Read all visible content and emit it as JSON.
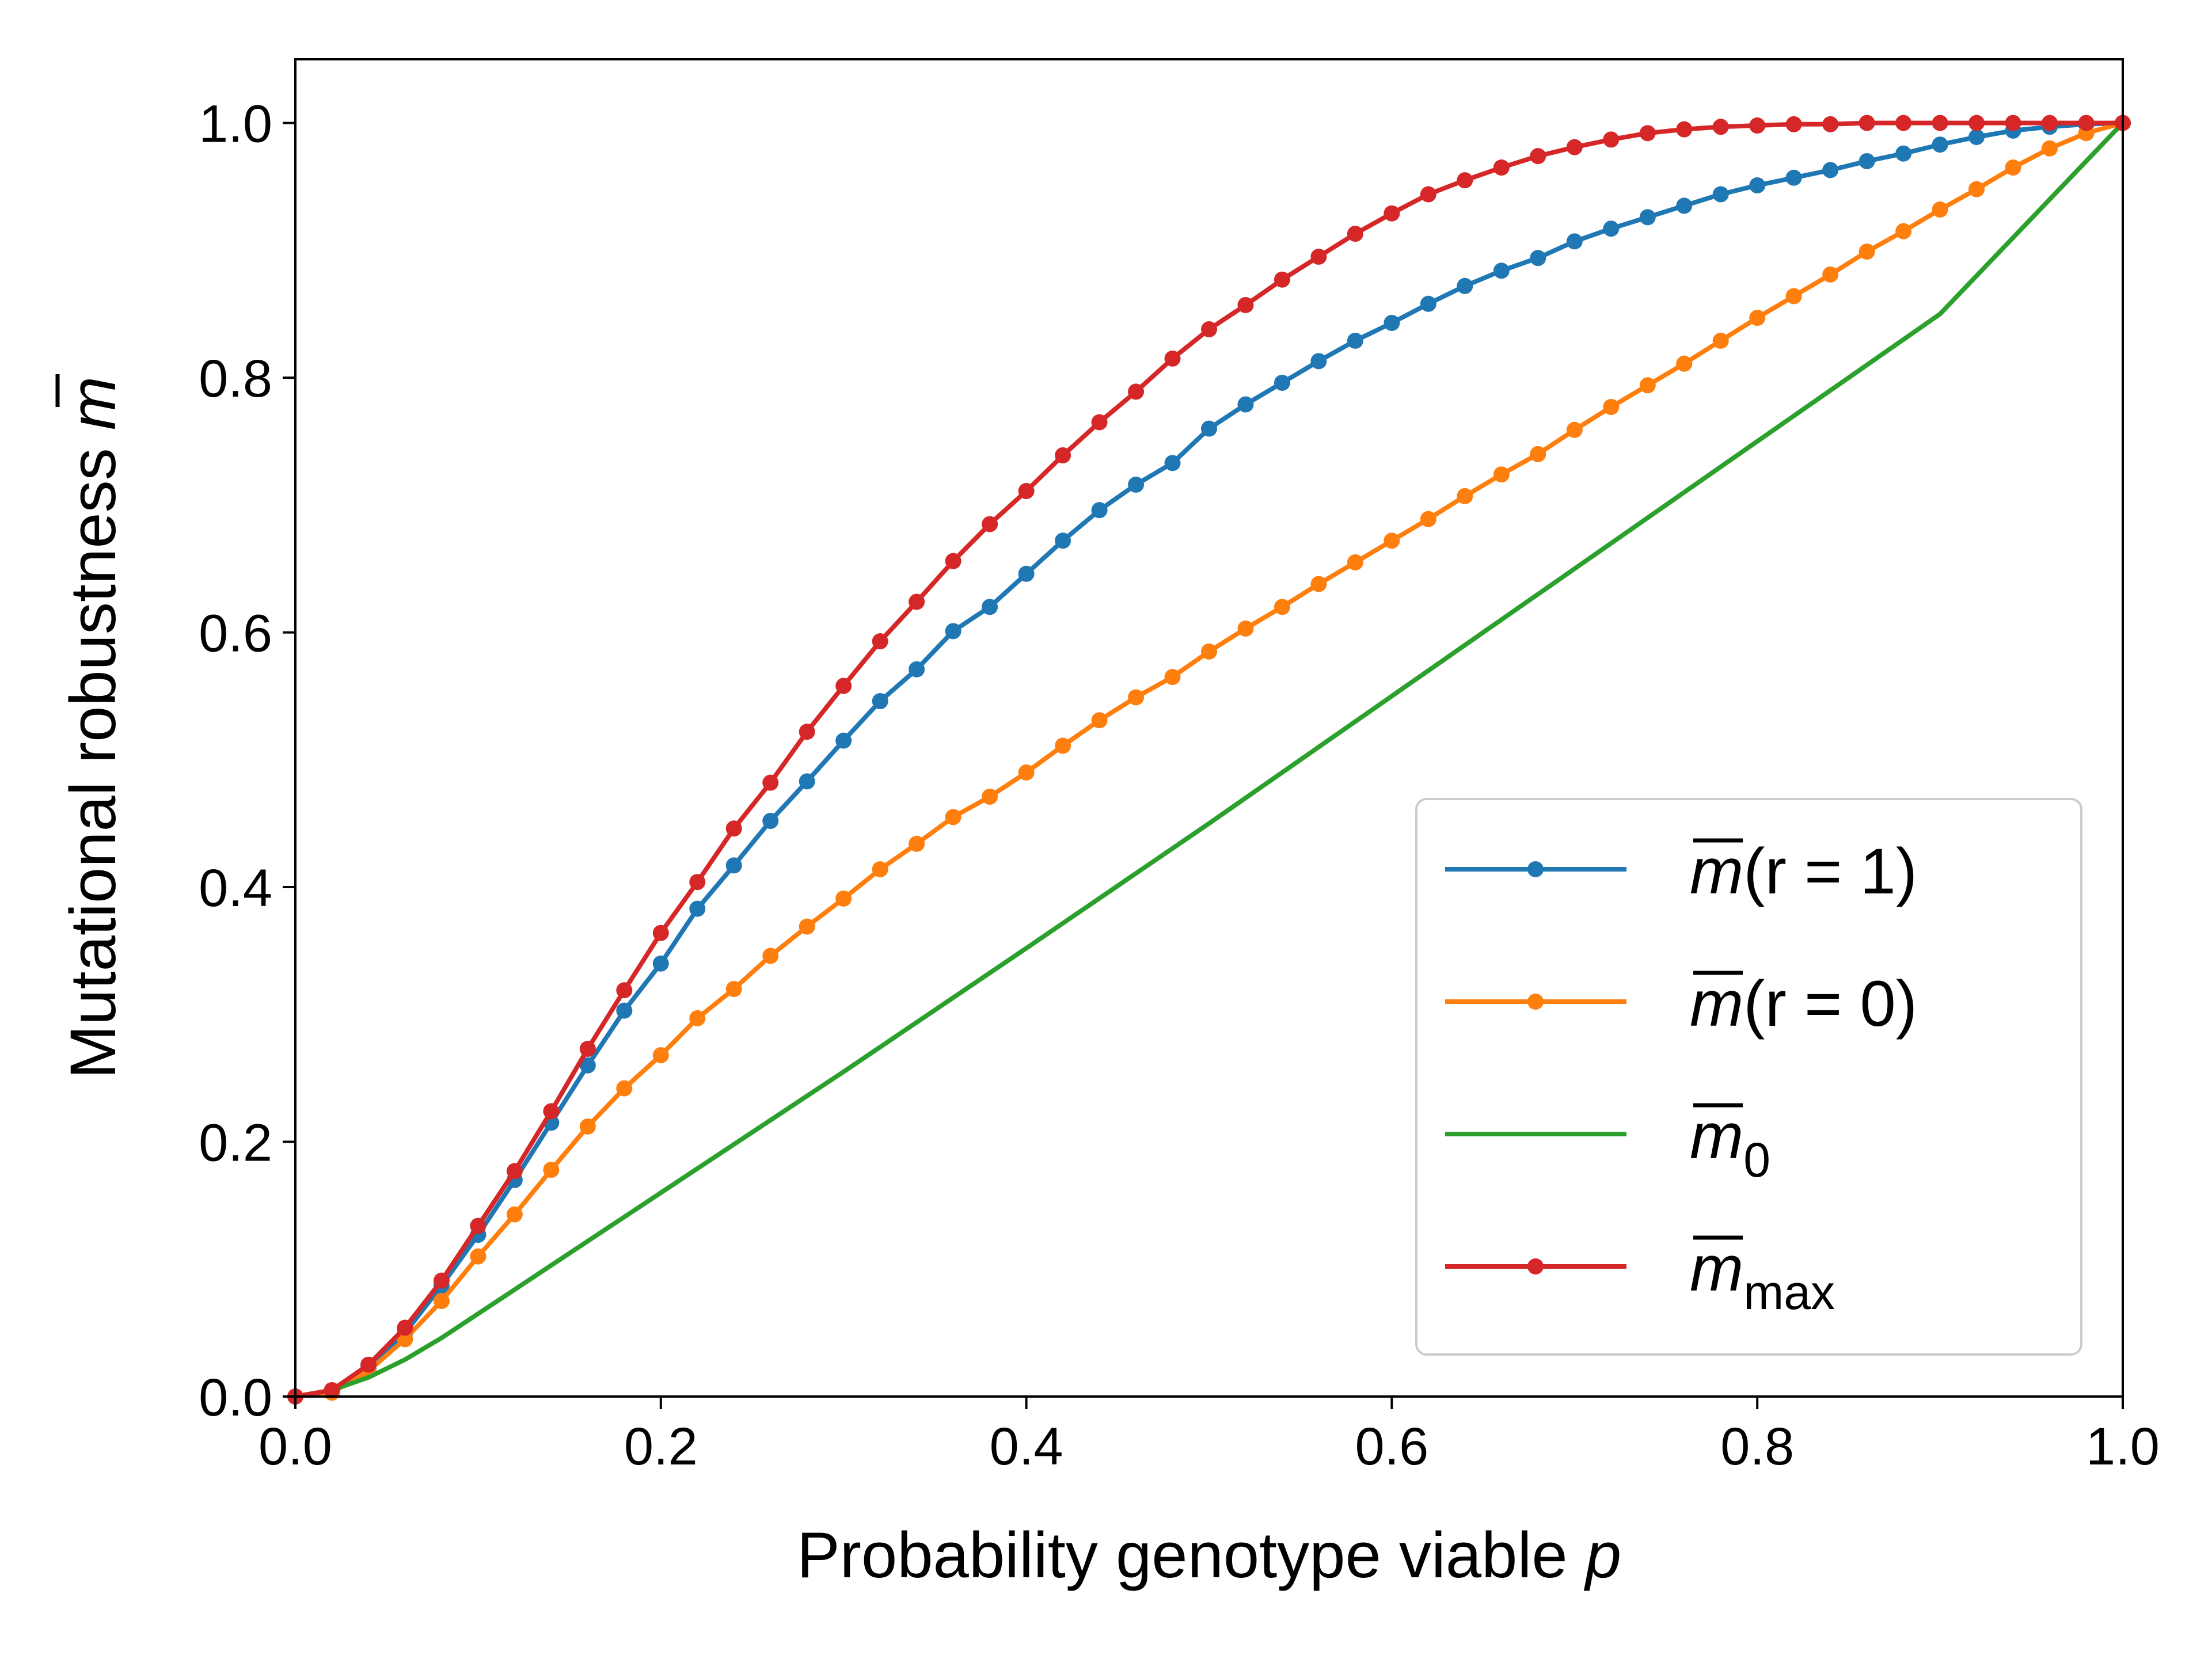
{
  "chart_data": {
    "type": "line",
    "title": "",
    "xlabel": "Probability genotype viable",
    "xlabel_var": "p",
    "ylabel": "Mutational robustness",
    "ylabel_var": "m",
    "xlim": [
      0,
      1
    ],
    "ylim": [
      0,
      1.05
    ],
    "xticks": [
      "0.0",
      "0.2",
      "0.4",
      "0.6",
      "0.8",
      "1.0"
    ],
    "yticks": [
      "0.0",
      "0.2",
      "0.4",
      "0.6",
      "0.8",
      "1.0"
    ],
    "legend_position": "lower-right",
    "series": [
      {
        "name": "m(r = 1)",
        "legend_var": "m",
        "legend_rest": "(r = 1)",
        "legend_sub": "",
        "color": "#1f77b4",
        "markers": true,
        "x": [
          0,
          0.02,
          0.04,
          0.06,
          0.08,
          0.1,
          0.12,
          0.14,
          0.16,
          0.18,
          0.2,
          0.22,
          0.24,
          0.26,
          0.28,
          0.3,
          0.32,
          0.34,
          0.36,
          0.38,
          0.4,
          0.42,
          0.44,
          0.46,
          0.48,
          0.5,
          0.52,
          0.54,
          0.56,
          0.58,
          0.6,
          0.62,
          0.64,
          0.66,
          0.68,
          0.7,
          0.72,
          0.74,
          0.76,
          0.78,
          0.8,
          0.82,
          0.84,
          0.86,
          0.88,
          0.9,
          0.92,
          0.94,
          0.96,
          0.98,
          1.0
        ],
        "y": [
          0,
          0.004,
          0.022,
          0.05,
          0.087,
          0.127,
          0.17,
          0.215,
          0.26,
          0.303,
          0.34,
          0.383,
          0.417,
          0.452,
          0.483,
          0.515,
          0.546,
          0.571,
          0.601,
          0.62,
          0.646,
          0.672,
          0.696,
          0.716,
          0.733,
          0.76,
          0.779,
          0.796,
          0.813,
          0.829,
          0.843,
          0.858,
          0.872,
          0.884,
          0.894,
          0.907,
          0.917,
          0.926,
          0.935,
          0.944,
          0.951,
          0.957,
          0.963,
          0.97,
          0.976,
          0.983,
          0.989,
          0.994,
          0.997,
          0.999,
          1.0
        ]
      },
      {
        "name": "m(r = 0)",
        "legend_var": "m",
        "legend_rest": "(r = 0)",
        "legend_sub": "",
        "color": "#ff7f0e",
        "markers": true,
        "x": [
          0,
          0.02,
          0.04,
          0.06,
          0.08,
          0.1,
          0.12,
          0.14,
          0.16,
          0.18,
          0.2,
          0.22,
          0.24,
          0.26,
          0.28,
          0.3,
          0.32,
          0.34,
          0.36,
          0.38,
          0.4,
          0.42,
          0.44,
          0.46,
          0.48,
          0.5,
          0.52,
          0.54,
          0.56,
          0.58,
          0.6,
          0.62,
          0.64,
          0.66,
          0.68,
          0.7,
          0.72,
          0.74,
          0.76,
          0.78,
          0.8,
          0.82,
          0.84,
          0.86,
          0.88,
          0.9,
          0.92,
          0.94,
          0.96,
          0.98,
          1.0
        ],
        "y": [
          0,
          0.003,
          0.02,
          0.045,
          0.075,
          0.11,
          0.143,
          0.178,
          0.212,
          0.242,
          0.268,
          0.297,
          0.32,
          0.346,
          0.369,
          0.391,
          0.414,
          0.434,
          0.455,
          0.471,
          0.49,
          0.511,
          0.531,
          0.549,
          0.565,
          0.585,
          0.603,
          0.62,
          0.638,
          0.655,
          0.672,
          0.689,
          0.707,
          0.724,
          0.74,
          0.759,
          0.777,
          0.794,
          0.811,
          0.829,
          0.847,
          0.864,
          0.881,
          0.899,
          0.915,
          0.932,
          0.948,
          0.965,
          0.98,
          0.992,
          1.0
        ]
      },
      {
        "name": "m0",
        "legend_var": "m",
        "legend_rest": "",
        "legend_sub": "0",
        "color": "#2ca02c",
        "markers": false,
        "x": [
          0,
          0.02,
          0.04,
          0.06,
          0.08,
          0.1,
          0.12,
          0.14,
          0.16,
          0.18,
          0.2,
          0.3,
          0.4,
          0.5,
          0.6,
          0.7,
          0.8,
          0.9,
          1.0
        ],
        "y": [
          0,
          0.005,
          0.015,
          0.029,
          0.046,
          0.065,
          0.084,
          0.103,
          0.122,
          0.141,
          0.16,
          0.255,
          0.352,
          0.45,
          0.55,
          0.65,
          0.75,
          0.85,
          1.0
        ]
      },
      {
        "name": "m_max",
        "legend_var": "m",
        "legend_rest": "",
        "legend_sub": "max",
        "color": "#d62728",
        "markers": true,
        "x": [
          0,
          0.02,
          0.04,
          0.06,
          0.08,
          0.1,
          0.12,
          0.14,
          0.16,
          0.18,
          0.2,
          0.22,
          0.24,
          0.26,
          0.28,
          0.3,
          0.32,
          0.34,
          0.36,
          0.38,
          0.4,
          0.42,
          0.44,
          0.46,
          0.48,
          0.5,
          0.52,
          0.54,
          0.56,
          0.58,
          0.6,
          0.62,
          0.64,
          0.66,
          0.68,
          0.7,
          0.72,
          0.74,
          0.76,
          0.78,
          0.8,
          0.82,
          0.84,
          0.86,
          0.88,
          0.9,
          0.92,
          0.94,
          0.96,
          0.98,
          1.0
        ],
        "y": [
          0,
          0.005,
          0.025,
          0.054,
          0.091,
          0.134,
          0.177,
          0.224,
          0.273,
          0.319,
          0.364,
          0.404,
          0.446,
          0.482,
          0.522,
          0.558,
          0.593,
          0.624,
          0.656,
          0.685,
          0.711,
          0.739,
          0.765,
          0.789,
          0.815,
          0.838,
          0.857,
          0.877,
          0.895,
          0.913,
          0.929,
          0.944,
          0.955,
          0.965,
          0.974,
          0.981,
          0.987,
          0.992,
          0.995,
          0.997,
          0.998,
          0.999,
          0.999,
          1.0,
          1.0,
          1.0,
          1.0,
          1.0,
          1.0,
          1.0,
          1.0
        ]
      }
    ]
  }
}
